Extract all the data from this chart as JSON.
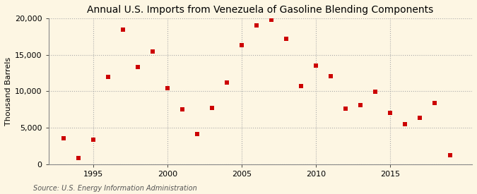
{
  "title": "Annual U.S. Imports from Venezuela of Gasoline Blending Components",
  "ylabel": "Thousand Barrels",
  "source": "Source: U.S. Energy Information Administration",
  "outer_bg": "#fdf6e3",
  "plot_bg": "#fdf6e3",
  "marker_color": "#cc0000",
  "marker_size": 18,
  "marker_shape": "s",
  "years": [
    1993,
    1994,
    1995,
    1996,
    1997,
    1998,
    1999,
    2000,
    2001,
    2002,
    2003,
    2004,
    2005,
    2006,
    2007,
    2008,
    2009,
    2010,
    2011,
    2012,
    2013,
    2014,
    2015,
    2016,
    2017,
    2018,
    2019
  ],
  "values": [
    3500,
    800,
    3300,
    12000,
    18500,
    13300,
    15500,
    10400,
    7500,
    4100,
    7700,
    11200,
    16300,
    19100,
    19800,
    17200,
    10700,
    13500,
    12100,
    7600,
    8100,
    9900,
    7000,
    5500,
    6400,
    8400,
    1200
  ],
  "xlim": [
    1992.0,
    2020.5
  ],
  "ylim": [
    0,
    20000
  ],
  "yticks": [
    0,
    5000,
    10000,
    15000,
    20000
  ],
  "xticks": [
    1995,
    2000,
    2005,
    2010,
    2015
  ],
  "title_fontsize": 10,
  "label_fontsize": 8,
  "tick_fontsize": 8,
  "source_fontsize": 7
}
